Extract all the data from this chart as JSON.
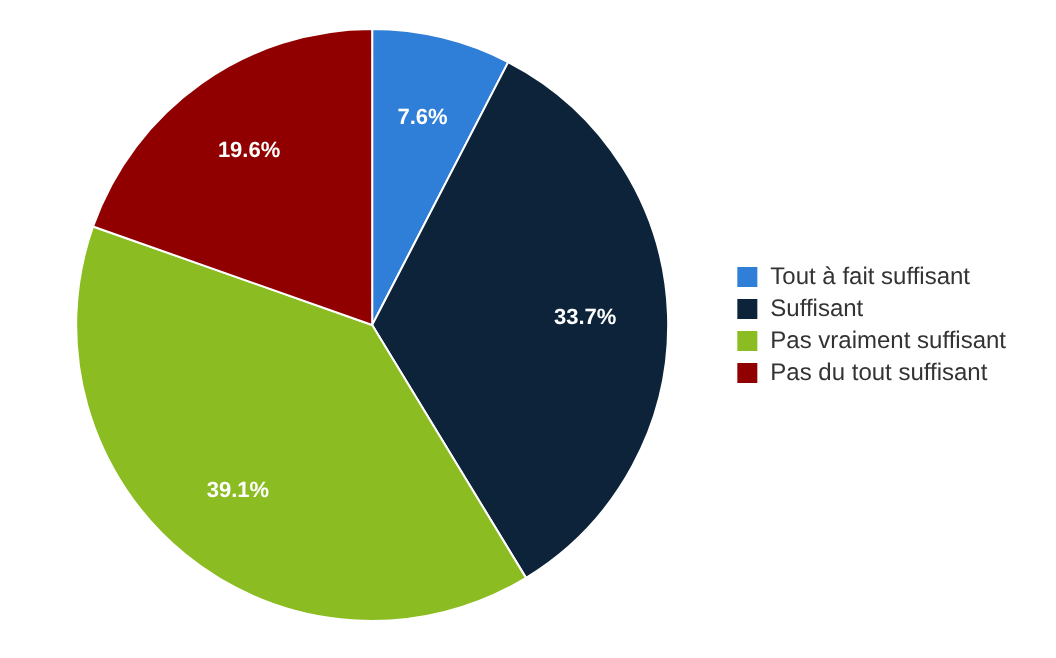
{
  "chart_data": {
    "type": "pie",
    "categories": [
      "Tout à fait suffisant",
      "Suffisant",
      "Pas vraiment suffisant",
      "Pas du tout suffisant"
    ],
    "values": [
      7.6,
      33.7,
      39.1,
      19.6
    ],
    "colors": [
      "#2f7ed8",
      "#0d233a",
      "#8bbc21",
      "#910000"
    ],
    "value_labels": [
      "7.6%",
      "33.7%",
      "39.1%",
      "19.6%"
    ],
    "legend": "right"
  }
}
